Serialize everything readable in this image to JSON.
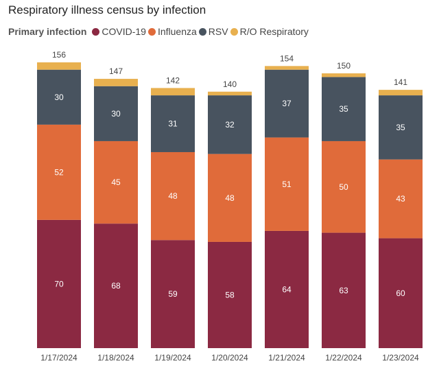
{
  "chart_data": {
    "type": "bar",
    "stacked": true,
    "title": "Respiratory illness census by infection",
    "legend_title": "Primary infection",
    "legend_position": "top-left",
    "categories": [
      "1/17/2024",
      "1/18/2024",
      "1/19/2024",
      "1/20/2024",
      "1/21/2024",
      "1/22/2024",
      "1/23/2024"
    ],
    "series": [
      {
        "name": "COVID-19",
        "color": "#8b2942",
        "values": [
          70,
          68,
          59,
          58,
          64,
          63,
          60
        ]
      },
      {
        "name": "Influenza",
        "color": "#e06b3a",
        "values": [
          52,
          45,
          48,
          48,
          51,
          50,
          43
        ]
      },
      {
        "name": "RSV",
        "color": "#48535f",
        "values": [
          30,
          30,
          31,
          32,
          37,
          35,
          35
        ]
      },
      {
        "name": "R/O Respiratory",
        "color": "#e8b04f",
        "values": [
          4,
          4,
          4,
          2,
          2,
          2,
          3
        ]
      }
    ],
    "totals": [
      156,
      147,
      142,
      140,
      154,
      150,
      141
    ],
    "label_series": [
      "COVID-19",
      "Influenza",
      "RSV"
    ],
    "ylim": [
      0,
      156
    ],
    "grid": false
  }
}
